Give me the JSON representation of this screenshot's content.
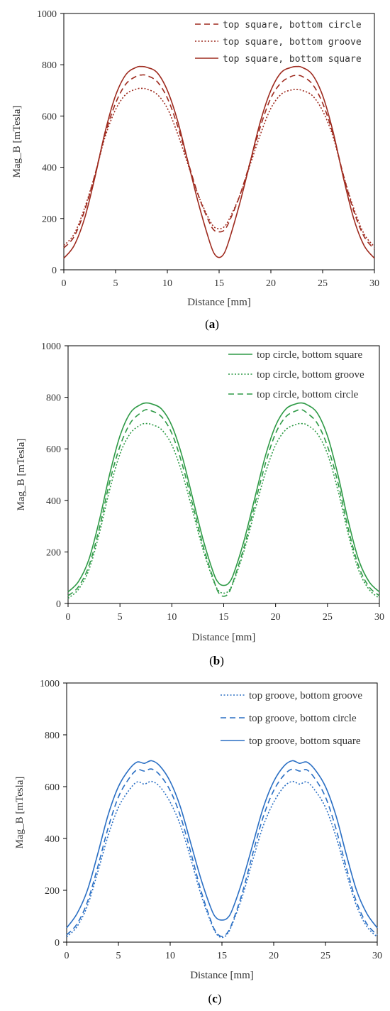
{
  "chart_data": [
    {
      "type": "line",
      "panel_label": "a",
      "xlabel": "Distance [mm]",
      "ylabel": "Mag_B [mTesla]",
      "xlim": [
        0,
        30
      ],
      "ylim": [
        0,
        1000
      ],
      "xticks": [
        0,
        5,
        10,
        15,
        20,
        25,
        30
      ],
      "yticks": [
        0,
        200,
        400,
        600,
        800,
        1000
      ],
      "legend_position": "top-right",
      "x": [
        0,
        1,
        2,
        3,
        4,
        5,
        6,
        7,
        7.5,
        8,
        9,
        10,
        11,
        12,
        13,
        14,
        14.5,
        15,
        15.5,
        16,
        17,
        18,
        19,
        20,
        21,
        22,
        22.5,
        23,
        24,
        25,
        26,
        27,
        28,
        29,
        30
      ],
      "series": [
        {
          "name": "top square, bottom circle",
          "color": "#9e2a1e",
          "dash": "dashed",
          "values": [
            85,
            130,
            230,
            370,
            530,
            650,
            725,
            755,
            760,
            758,
            735,
            670,
            560,
            420,
            290,
            190,
            155,
            148,
            155,
            190,
            290,
            420,
            560,
            670,
            730,
            755,
            758,
            755,
            725,
            650,
            530,
            370,
            230,
            130,
            80
          ]
        },
        {
          "name": "top square, bottom groove",
          "color": "#9e2a1e",
          "dash": "dotted",
          "values": [
            95,
            140,
            240,
            370,
            520,
            625,
            685,
            705,
            708,
            705,
            685,
            630,
            530,
            410,
            290,
            200,
            168,
            160,
            168,
            200,
            290,
            410,
            530,
            630,
            685,
            702,
            703,
            700,
            680,
            620,
            520,
            370,
            240,
            140,
            90
          ]
        },
        {
          "name": "top square, bottom square",
          "color": "#9e2a1e",
          "dash": "solid",
          "values": [
            45,
            95,
            200,
            360,
            540,
            680,
            762,
            790,
            793,
            790,
            770,
            700,
            580,
            420,
            260,
            120,
            65,
            48,
            65,
            120,
            260,
            420,
            580,
            700,
            770,
            790,
            793,
            790,
            762,
            680,
            540,
            360,
            200,
            95,
            45
          ]
        }
      ]
    },
    {
      "type": "line",
      "panel_label": "b",
      "xlabel": "Distance [mm]",
      "ylabel": "Mag_B [mTesla]",
      "xlim": [
        0,
        30
      ],
      "ylim": [
        0,
        1000
      ],
      "xticks": [
        0,
        5,
        10,
        15,
        20,
        25,
        30
      ],
      "yticks": [
        0,
        200,
        400,
        600,
        800,
        1000
      ],
      "legend_position": "top-right",
      "x": [
        0,
        1,
        2,
        3,
        4,
        5,
        6,
        7,
        7.5,
        8,
        9,
        10,
        11,
        12,
        13,
        14,
        14.5,
        15,
        15.5,
        16,
        17,
        18,
        19,
        20,
        21,
        22,
        22.5,
        23,
        24,
        25,
        26,
        27,
        28,
        29,
        30
      ],
      "series": [
        {
          "name": "top circle, bottom square",
          "color": "#2e9a46",
          "dash": "solid",
          "values": [
            45,
            85,
            170,
            320,
            500,
            650,
            740,
            772,
            778,
            775,
            755,
            690,
            570,
            410,
            250,
            120,
            80,
            70,
            80,
            120,
            250,
            410,
            570,
            690,
            755,
            775,
            778,
            772,
            740,
            650,
            500,
            320,
            170,
            85,
            45
          ]
        },
        {
          "name": "top circle, bottom groove",
          "color": "#2e9a46",
          "dash": "dotted",
          "values": [
            20,
            55,
            130,
            270,
            440,
            580,
            660,
            693,
            698,
            695,
            675,
            615,
            505,
            360,
            210,
            90,
            50,
            40,
            50,
            90,
            210,
            360,
            505,
            615,
            675,
            695,
            698,
            693,
            660,
            580,
            440,
            270,
            130,
            55,
            20
          ]
        },
        {
          "name": "top circle, bottom circle",
          "color": "#2e9a46",
          "dash": "dashed",
          "values": [
            30,
            65,
            145,
            290,
            470,
            610,
            700,
            740,
            752,
            748,
            725,
            660,
            540,
            385,
            225,
            95,
            42,
            28,
            42,
            95,
            225,
            385,
            540,
            660,
            725,
            748,
            752,
            740,
            700,
            610,
            470,
            290,
            145,
            65,
            30
          ]
        }
      ]
    },
    {
      "type": "line",
      "panel_label": "c",
      "xlabel": "Distance [mm]",
      "ylabel": "Mag_B [mTesla]",
      "xlim": [
        0,
        30
      ],
      "ylim": [
        0,
        1000
      ],
      "xticks": [
        0,
        5,
        10,
        15,
        20,
        25,
        30
      ],
      "yticks": [
        0,
        200,
        400,
        600,
        800,
        1000
      ],
      "legend_position": "top-right",
      "x": [
        0,
        1,
        2,
        3,
        4,
        5,
        6,
        6.8,
        7.5,
        8.2,
        9,
        10,
        11,
        12,
        13,
        14,
        14.5,
        15,
        15.5,
        16,
        17,
        18,
        19,
        20,
        21,
        21.8,
        22.5,
        23.2,
        24,
        25,
        26,
        27,
        28,
        29,
        30
      ],
      "series": [
        {
          "name": "top groove, bottom groove",
          "color": "#2a6fc4",
          "dash": "dotted",
          "values": [
            20,
            60,
            140,
            270,
            410,
            520,
            585,
            618,
            610,
            620,
            600,
            540,
            450,
            320,
            180,
            70,
            30,
            18,
            30,
            70,
            180,
            320,
            450,
            540,
            600,
            620,
            610,
            618,
            585,
            520,
            410,
            270,
            140,
            60,
            20
          ]
        },
        {
          "name": "top groove, bottom circle",
          "color": "#2a6fc4",
          "dash": "dashed",
          "values": [
            28,
            70,
            155,
            290,
            440,
            560,
            630,
            665,
            660,
            668,
            645,
            585,
            485,
            345,
            195,
            75,
            35,
            22,
            35,
            75,
            195,
            345,
            485,
            585,
            645,
            668,
            660,
            665,
            630,
            560,
            440,
            290,
            155,
            70,
            28
          ]
        },
        {
          "name": "top groove, bottom square",
          "color": "#2a6fc4",
          "dash": "solid",
          "values": [
            55,
            110,
            200,
            340,
            490,
            600,
            665,
            695,
            690,
            700,
            680,
            620,
            520,
            380,
            240,
            125,
            92,
            85,
            92,
            125,
            240,
            380,
            520,
            620,
            680,
            700,
            690,
            695,
            665,
            600,
            490,
            340,
            200,
            110,
            55
          ]
        }
      ]
    }
  ]
}
